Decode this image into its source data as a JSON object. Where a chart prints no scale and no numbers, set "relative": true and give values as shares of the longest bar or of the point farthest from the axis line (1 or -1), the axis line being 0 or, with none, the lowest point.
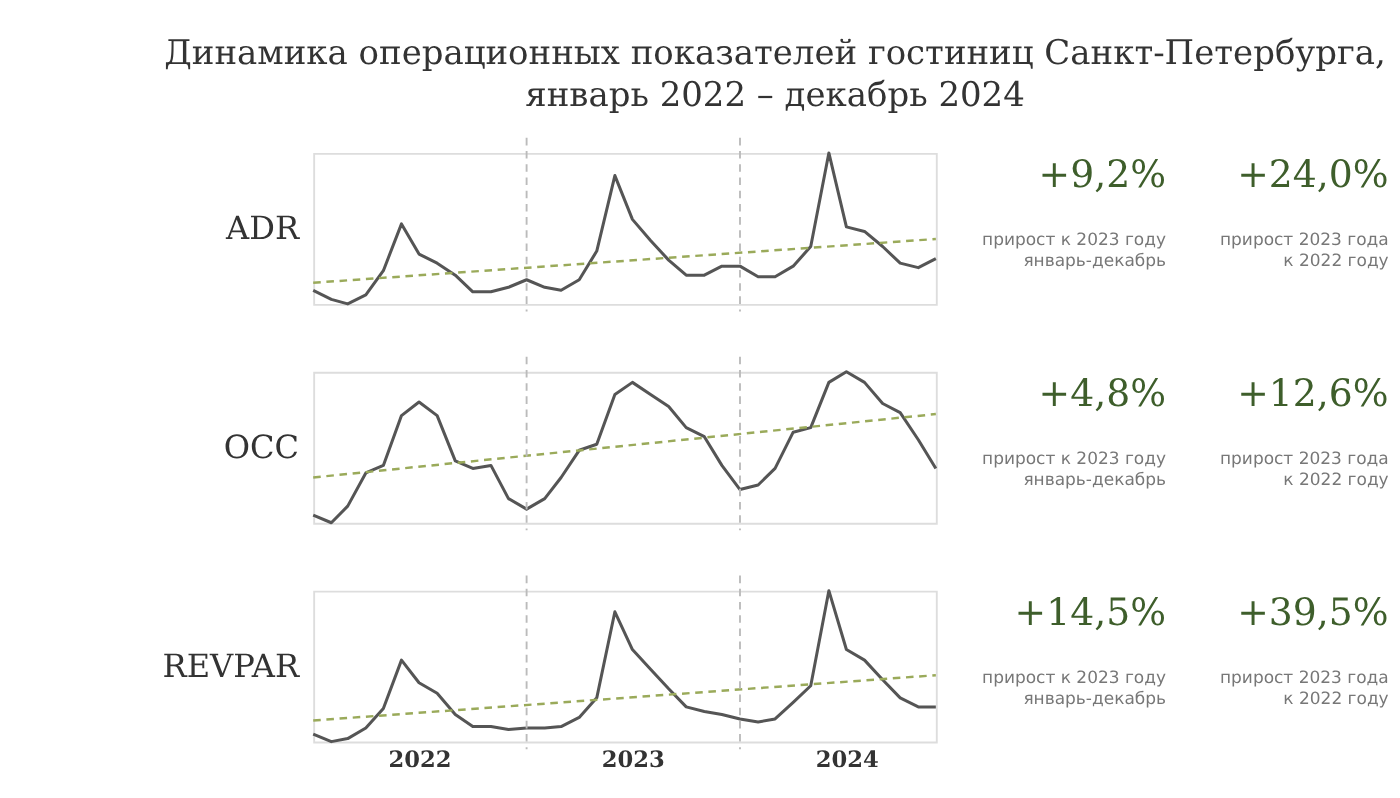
{
  "chart_data": [
    {
      "type": "line",
      "title": "Динамика операционных показателей гостиниц Санкт-Петербурга, январь 2022 – декабрь 2024",
      "ylabel": "ADR",
      "relative": true,
      "tick_labels": false,
      "x": [
        "2022-01",
        "2022-02",
        "2022-03",
        "2022-04",
        "2022-05",
        "2022-06",
        "2022-07",
        "2022-08",
        "2022-09",
        "2022-10",
        "2022-11",
        "2022-12",
        "2023-01",
        "2023-02",
        "2023-03",
        "2023-04",
        "2023-05",
        "2023-06",
        "2023-07",
        "2023-08",
        "2023-09",
        "2023-10",
        "2023-11",
        "2023-12",
        "2024-01",
        "2024-02",
        "2024-03",
        "2024-04",
        "2024-05",
        "2024-06",
        "2024-07",
        "2024-08",
        "2024-09",
        "2024-10",
        "2024-11",
        "2024-12"
      ],
      "xlim": [
        "2022-01",
        "2024-12"
      ],
      "series": [
        {
          "color": "#555555",
          "line_style": "solid",
          "values": [
            0.09,
            0.03,
            0,
            0.06,
            0.22,
            0.53,
            0.33,
            0.27,
            0.19,
            0.08,
            0.08,
            0.11,
            0.16,
            0.11,
            0.09,
            0.16,
            0.35,
            0.85,
            0.56,
            0.42,
            0.29,
            0.19,
            0.19,
            0.25,
            0.25,
            0.18,
            0.18,
            0.25,
            0.38,
            1,
            0.51,
            0.48,
            0.38,
            0.27,
            0.24,
            0.3
          ]
        },
        {
          "type": "line",
          "color": "#9aaa5a",
          "line_style": "dashed",
          "x": [
            "2022-01",
            "2024-12"
          ],
          "values": [
            0.14,
            0.43
          ]
        }
      ],
      "ref_lines": [
        {
          "axis": "x",
          "value": "2023-01",
          "line_style": "dashed",
          "color": "#bbbbbb"
        },
        {
          "axis": "x",
          "value": "2024-01",
          "line_style": "dashed",
          "color": "#bbbbbb"
        }
      ],
      "annotations": [
        "+9,2%",
        "прирост к 2023 году\nянварь-декабрь",
        "+24,0%",
        "прирост 2023 года\nк 2022 году"
      ]
    },
    {
      "type": "line",
      "ylabel": "OCC",
      "relative": true,
      "tick_labels": false,
      "x": [
        "2022-01",
        "2022-02",
        "2022-03",
        "2022-04",
        "2022-05",
        "2022-06",
        "2022-07",
        "2022-08",
        "2022-09",
        "2022-10",
        "2022-11",
        "2022-12",
        "2023-01",
        "2023-02",
        "2023-03",
        "2023-04",
        "2023-05",
        "2023-06",
        "2023-07",
        "2023-08",
        "2023-09",
        "2023-10",
        "2023-11",
        "2023-12",
        "2024-01",
        "2024-02",
        "2024-03",
        "2024-04",
        "2024-05",
        "2024-06",
        "2024-07",
        "2024-08",
        "2024-09",
        "2024-10",
        "2024-11",
        "2024-12"
      ],
      "xlim": [
        "2022-01",
        "2024-12"
      ],
      "series": [
        {
          "color": "#555555",
          "line_style": "solid",
          "values": [
            0.05,
            0,
            0.11,
            0.33,
            0.38,
            0.71,
            0.8,
            0.71,
            0.41,
            0.36,
            0.38,
            0.16,
            0.09,
            0.16,
            0.3,
            0.48,
            0.52,
            0.85,
            0.93,
            0.85,
            0.77,
            0.63,
            0.57,
            0.38,
            0.22,
            0.25,
            0.36,
            0.6,
            0.63,
            0.93,
            1,
            0.93,
            0.79,
            0.73,
            0.55,
            0.36
          ]
        },
        {
          "type": "line",
          "color": "#9aaa5a",
          "line_style": "dashed",
          "x": [
            "2022-01",
            "2024-12"
          ],
          "values": [
            0.3,
            0.72
          ]
        }
      ],
      "ref_lines": [
        {
          "axis": "x",
          "value": "2023-01",
          "line_style": "dashed",
          "color": "#bbbbbb"
        },
        {
          "axis": "x",
          "value": "2024-01",
          "line_style": "dashed",
          "color": "#bbbbbb"
        }
      ],
      "annotations": [
        "+4,8%",
        "прирост к 2023 году\nянварь-декабрь",
        "+12,6%",
        "прирост 2023 года\nк 2022 году"
      ]
    },
    {
      "type": "line",
      "ylabel": "REVPAR",
      "relative": true,
      "tick_labels": "x",
      "x": [
        "2022-01",
        "2022-02",
        "2022-03",
        "2022-04",
        "2022-05",
        "2022-06",
        "2022-07",
        "2022-08",
        "2022-09",
        "2022-10",
        "2022-11",
        "2022-12",
        "2023-01",
        "2023-02",
        "2023-03",
        "2023-04",
        "2023-05",
        "2023-06",
        "2023-07",
        "2023-08",
        "2023-09",
        "2023-10",
        "2023-11",
        "2023-12",
        "2024-01",
        "2024-02",
        "2024-03",
        "2024-04",
        "2024-05",
        "2024-06",
        "2024-07",
        "2024-08",
        "2024-09",
        "2024-10",
        "2024-11",
        "2024-12"
      ],
      "xlim": [
        "2022-01",
        "2024-12"
      ],
      "xticks": [
        {
          "value": "2022-07",
          "label": "2022"
        },
        {
          "value": "2023-07",
          "label": "2023"
        },
        {
          "value": "2024-07",
          "label": "2024"
        }
      ],
      "series": [
        {
          "color": "#555555",
          "line_style": "solid",
          "values": [
            0.05,
            0,
            0.02,
            0.09,
            0.22,
            0.54,
            0.39,
            0.32,
            0.18,
            0.1,
            0.1,
            0.08,
            0.09,
            0.09,
            0.1,
            0.16,
            0.29,
            0.86,
            0.61,
            0.48,
            0.35,
            0.23,
            0.2,
            0.18,
            0.15,
            0.13,
            0.15,
            0.26,
            0.37,
            1,
            0.61,
            0.54,
            0.41,
            0.29,
            0.23,
            0.23
          ]
        },
        {
          "type": "line",
          "color": "#9aaa5a",
          "line_style": "dashed",
          "x": [
            "2022-01",
            "2024-12"
          ],
          "values": [
            0.14,
            0.44
          ]
        }
      ],
      "ref_lines": [
        {
          "axis": "x",
          "value": "2023-01",
          "line_style": "dashed",
          "color": "#bbbbbb"
        },
        {
          "axis": "x",
          "value": "2024-01",
          "line_style": "dashed",
          "color": "#bbbbbb"
        }
      ],
      "annotations": [
        "+14,5%",
        "прирост к 2023 году\nянварь-декабрь",
        "+39,5%",
        "прирост 2023 года\nк 2022 году"
      ]
    }
  ]
}
